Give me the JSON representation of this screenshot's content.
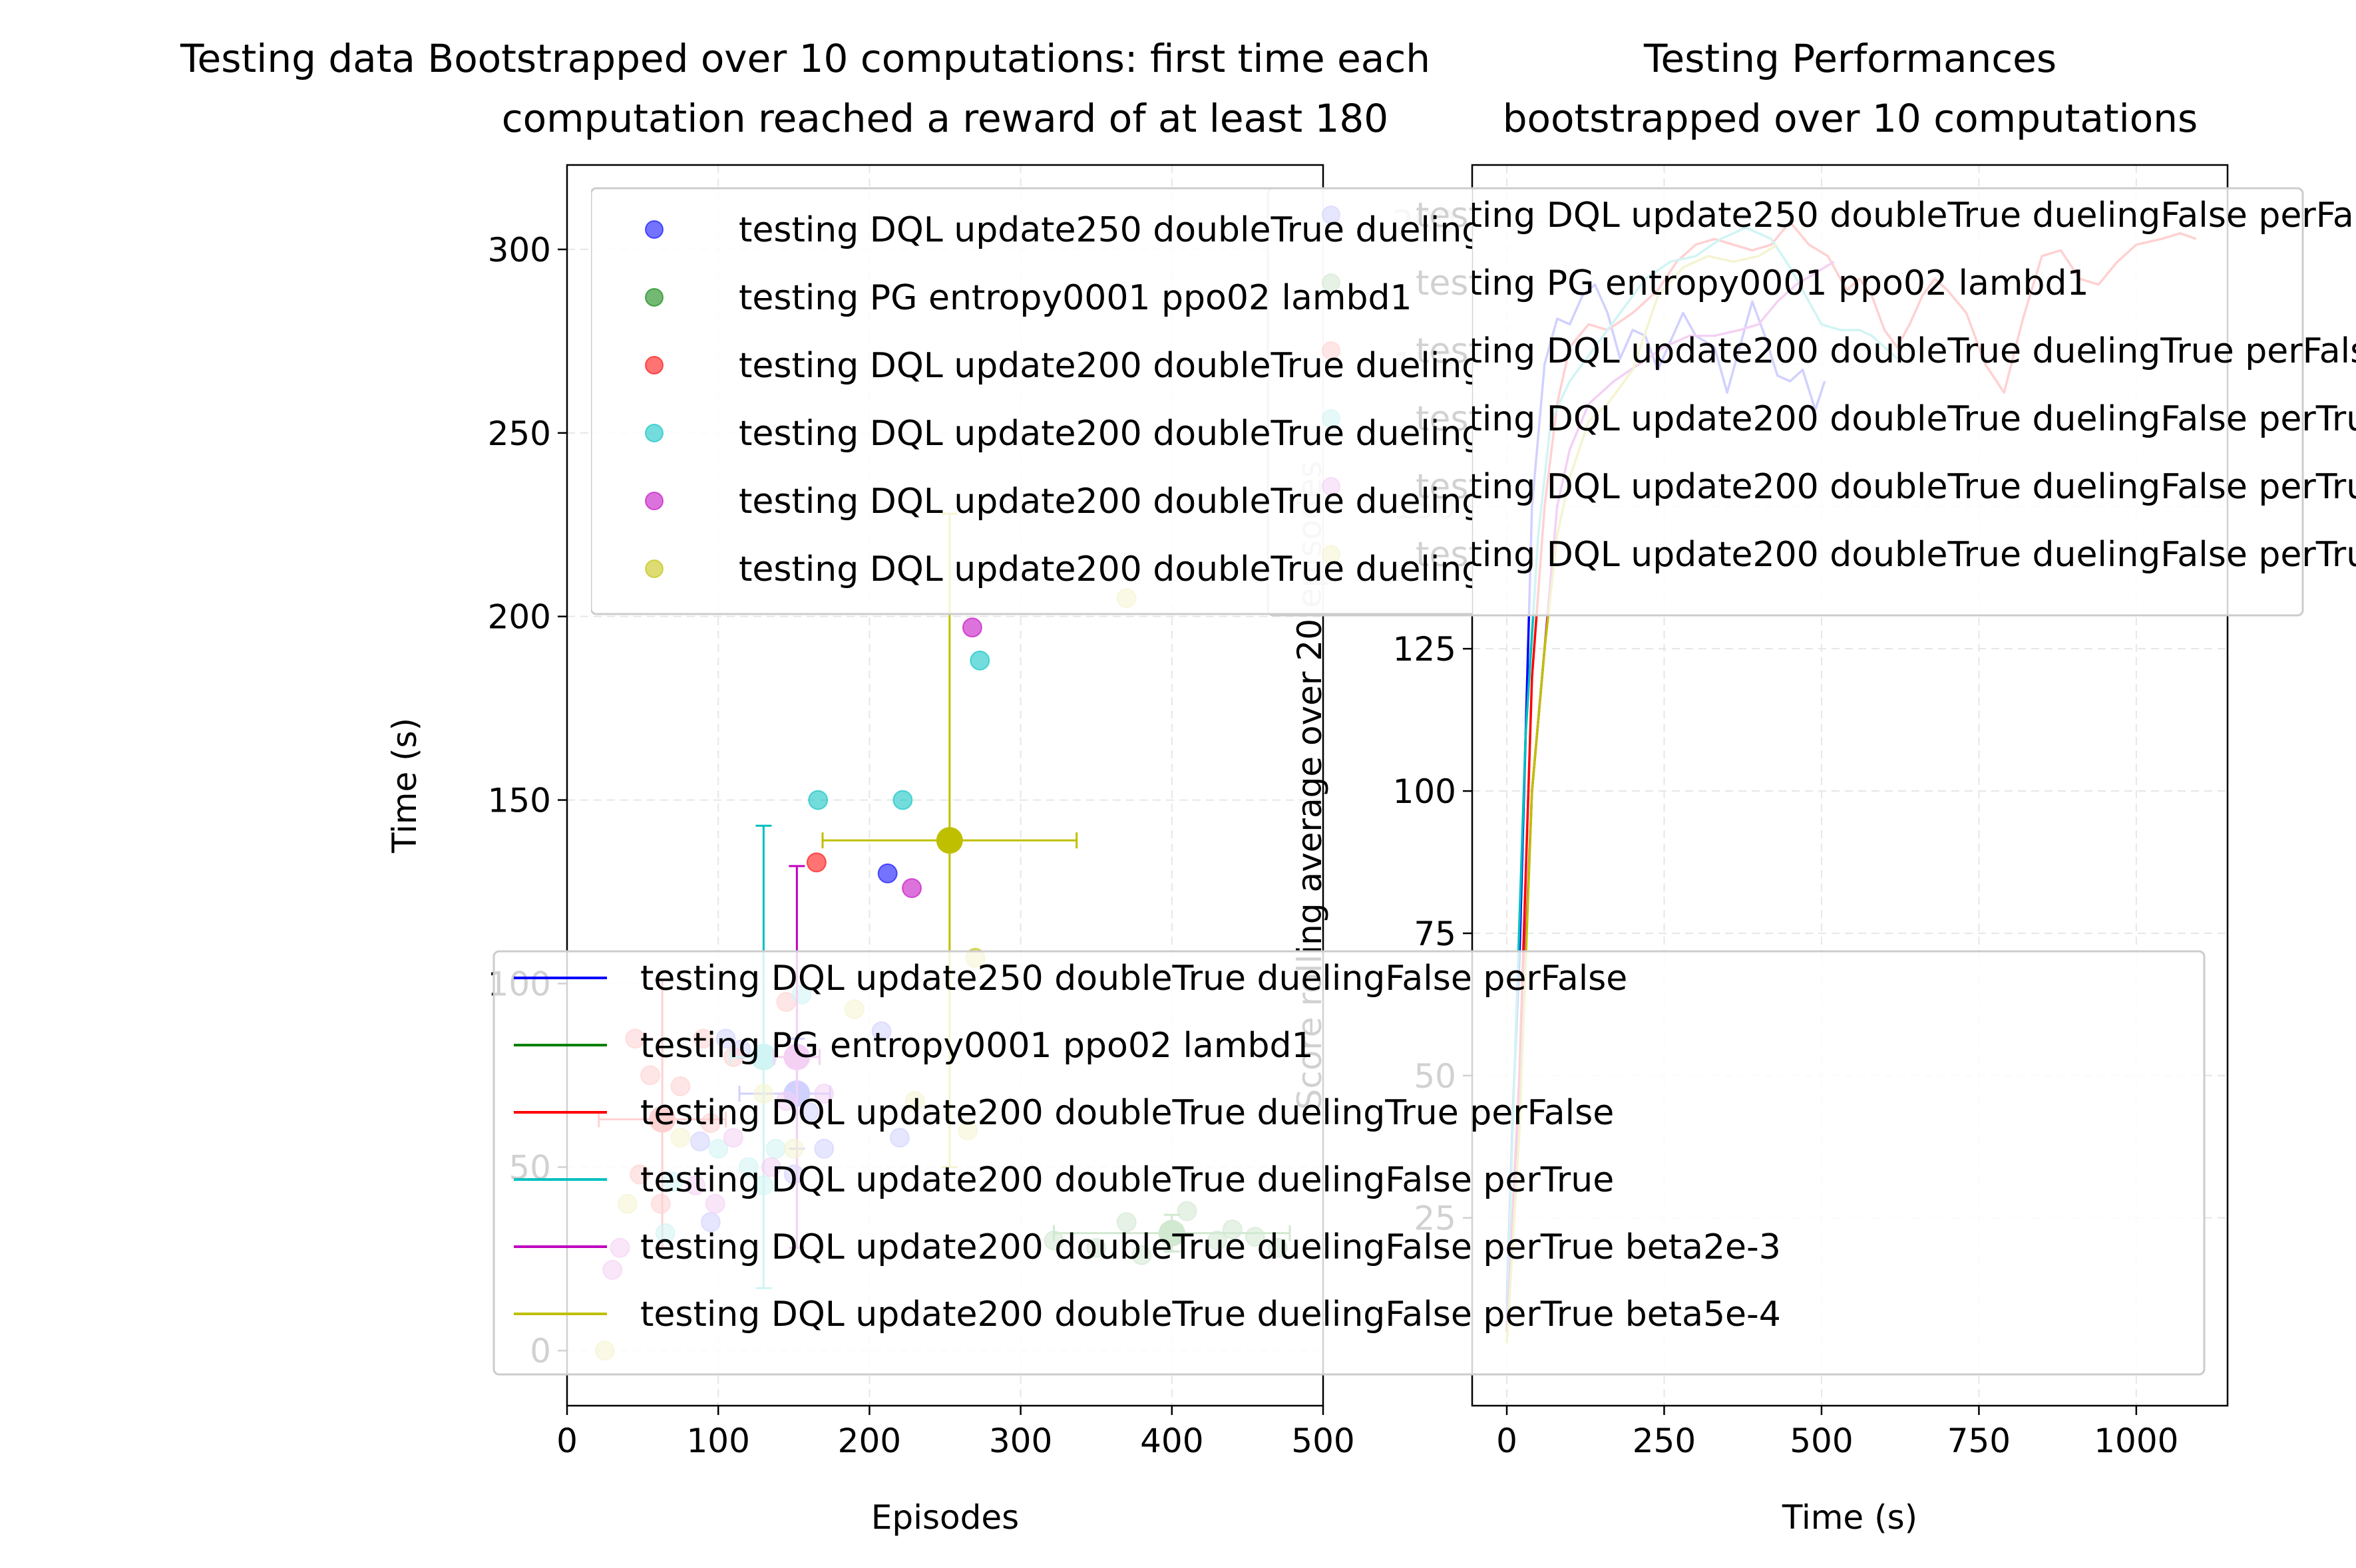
{
  "chart_data": [
    {
      "type": "scatter",
      "title_line1": "Testing data Bootstrapped over 10 computations: first time each",
      "title_line2": "computation reached a reward of at least 180",
      "xlabel": "Episodes",
      "ylabel": "Time (s)",
      "xlim": [
        0,
        500
      ],
      "ylim": [
        -15,
        323
      ],
      "xticks": [
        0,
        100,
        200,
        300,
        400,
        500
      ],
      "yticks": [
        0,
        50,
        100,
        150,
        200,
        250,
        300
      ],
      "grid": true,
      "legend_position": "upper-left",
      "series": [
        {
          "name": "testing DQL update250 doubleTrue duelingFalse perFalse",
          "color": "#0000ff",
          "points": [
            [
              88,
              57
            ],
            [
              105,
              85
            ],
            [
              115,
              82
            ],
            [
              150,
              48
            ],
            [
              160,
              65
            ],
            [
              170,
              55
            ],
            [
              208,
              87
            ],
            [
              212,
              130
            ],
            [
              220,
              58
            ],
            [
              95,
              35
            ]
          ],
          "mean": [
            152,
            70
          ],
          "xerr": [
            38,
            22
          ],
          "yerr": [
            15,
            15
          ]
        },
        {
          "name": "testing PG entropy0001 ppo02 lambd1",
          "color": "#008000",
          "points": [
            [
              322,
              30
            ],
            [
              350,
              28
            ],
            [
              370,
              35
            ],
            [
              400,
              32
            ],
            [
              430,
              30
            ],
            [
              470,
              28
            ],
            [
              380,
              26
            ],
            [
              410,
              38
            ],
            [
              440,
              33
            ],
            [
              455,
              31
            ]
          ],
          "mean": [
            400,
            32
          ],
          "xerr": [
            78,
            78
          ],
          "yerr": [
            5,
            5
          ]
        },
        {
          "name": "testing DQL update200 doubleTrue duelingTrue perFalse",
          "color": "#ff0000",
          "points": [
            [
              45,
              85
            ],
            [
              48,
              48
            ],
            [
              55,
              75
            ],
            [
              62,
              40
            ],
            [
              75,
              72
            ],
            [
              90,
              85
            ],
            [
              95,
              62
            ],
            [
              110,
              80
            ],
            [
              145,
              95
            ],
            [
              165,
              133
            ]
          ],
          "mean": [
            63,
            63
          ],
          "xerr": [
            42,
            42
          ],
          "yerr": [
            35,
            38
          ]
        },
        {
          "name": "testing DQL update200 doubleTrue duelingFalse perTrue",
          "color": "#00bfbf",
          "points": [
            [
              65,
              32
            ],
            [
              100,
              55
            ],
            [
              120,
              50
            ],
            [
              130,
              45
            ],
            [
              138,
              55
            ],
            [
              155,
              97
            ],
            [
              166,
              150
            ],
            [
              222,
              150
            ],
            [
              273,
              188
            ],
            [
              70,
              46
            ]
          ],
          "mean": [
            130,
            80
          ],
          "xerr": [
            22,
            22
          ],
          "yerr": [
            63,
            63
          ]
        },
        {
          "name": "testing DQL update200 doubleTrue duelingFalse perTrue  beta2e-3",
          "color": "#bf00bf",
          "points": [
            [
              30,
              22
            ],
            [
              35,
              28
            ],
            [
              85,
              45
            ],
            [
              110,
              58
            ],
            [
              135,
              50
            ],
            [
              145,
              68
            ],
            [
              170,
              70
            ],
            [
              228,
              126
            ],
            [
              268,
              197
            ],
            [
              98,
              40
            ]
          ],
          "mean": [
            152,
            80
          ],
          "xerr": [
            15,
            15
          ],
          "yerr": [
            52,
            52
          ]
        },
        {
          "name": "testing DQL update200 doubleTrue duelingFalse perTrue  beta5e-4",
          "color": "#bfbf00",
          "points": [
            [
              25,
              0
            ],
            [
              40,
              40
            ],
            [
              75,
              58
            ],
            [
              130,
              70
            ],
            [
              190,
              93
            ],
            [
              230,
              68
            ],
            [
              265,
              60
            ],
            [
              270,
              107
            ],
            [
              370,
              205
            ],
            [
              150,
              55
            ]
          ],
          "mean": [
            253,
            139
          ],
          "xerr": [
            84,
            84
          ],
          "yerr": [
            89,
            89
          ]
        }
      ]
    },
    {
      "type": "line",
      "title_line1": "Testing Performances",
      "title_line2": "bootstrapped over 10 computations",
      "xlabel": "Time (s)",
      "ylabel": "Score rolling average over 20 episodes",
      "xlim": [
        -55,
        1145
      ],
      "ylim": [
        -8,
        210
      ],
      "xticks": [
        0,
        250,
        500,
        750,
        1000
      ],
      "yticks": [
        25,
        50,
        75,
        100,
        125,
        150,
        175,
        200
      ],
      "grid": true,
      "legend_position": "upper-right",
      "series": [
        {
          "name": "testing DQL update250 doubleTrue duelingFalse perFalse",
          "color": "#0000ff",
          "points": [
            [
              0,
              10
            ],
            [
              10,
              45
            ],
            [
              20,
              70
            ],
            [
              30,
              110
            ],
            [
              40,
              150
            ],
            [
              60,
              175
            ],
            [
              80,
              183
            ],
            [
              100,
              182
            ],
            [
              120,
              187
            ],
            [
              140,
              189
            ],
            [
              160,
              184
            ],
            [
              180,
              176
            ],
            [
              200,
              181
            ],
            [
              220,
              180
            ],
            [
              240,
              174
            ],
            [
              260,
              179
            ],
            [
              280,
              184
            ],
            [
              300,
              180
            ],
            [
              330,
              178
            ],
            [
              350,
              170
            ],
            [
              370,
              178
            ],
            [
              390,
              186
            ],
            [
              410,
              180
            ],
            [
              430,
              173
            ],
            [
              450,
              172
            ],
            [
              470,
              174
            ],
            [
              490,
              167
            ],
            [
              505,
              172
            ]
          ]
        },
        {
          "name": "testing PG entropy0001 ppo02 lambd1",
          "color": "#008000",
          "points": []
        },
        {
          "name": "testing DQL update200 doubleTrue duelingTrue perFalse",
          "color": "#ff0000",
          "points": [
            [
              0,
              5
            ],
            [
              20,
              50
            ],
            [
              40,
              120
            ],
            [
              60,
              150
            ],
            [
              80,
              168
            ],
            [
              100,
              178
            ],
            [
              130,
              182
            ],
            [
              160,
              181
            ],
            [
              200,
              184
            ],
            [
              240,
              188
            ],
            [
              270,
              193
            ],
            [
              300,
              196
            ],
            [
              330,
              197
            ],
            [
              360,
              196
            ],
            [
              390,
              195
            ],
            [
              420,
              196
            ],
            [
              450,
              200
            ],
            [
              480,
              196
            ],
            [
              510,
              194
            ],
            [
              540,
              188
            ],
            [
              560,
              190
            ],
            [
              580,
              187
            ],
            [
              600,
              181
            ],
            [
              620,
              178
            ],
            [
              640,
              182
            ],
            [
              660,
              187
            ],
            [
              680,
              190
            ],
            [
              700,
              188
            ],
            [
              730,
              184
            ],
            [
              760,
              175
            ],
            [
              790,
              170
            ],
            [
              820,
              183
            ],
            [
              850,
              194
            ],
            [
              880,
              195
            ],
            [
              910,
              190
            ],
            [
              940,
              189
            ],
            [
              970,
              193
            ],
            [
              1000,
              196
            ],
            [
              1040,
              197
            ],
            [
              1070,
              198
            ],
            [
              1095,
              197
            ]
          ]
        },
        {
          "name": "testing DQL update200 doubleTrue duelingFalse perTrue",
          "color": "#00bfbf",
          "points": [
            [
              0,
              8
            ],
            [
              15,
              60
            ],
            [
              30,
              110
            ],
            [
              50,
              145
            ],
            [
              70,
              165
            ],
            [
              100,
              172
            ],
            [
              140,
              178
            ],
            [
              180,
              184
            ],
            [
              220,
              190
            ],
            [
              260,
              193
            ],
            [
              300,
              194
            ],
            [
              340,
              197
            ],
            [
              380,
              199
            ],
            [
              420,
              197
            ],
            [
              450,
              192
            ],
            [
              480,
              186
            ],
            [
              500,
              182
            ],
            [
              530,
              181
            ],
            [
              560,
              181
            ],
            [
              580,
              180
            ],
            [
              600,
              178
            ],
            [
              620,
              176
            ]
          ]
        },
        {
          "name": "testing DQL update200 doubleTrue duelingFalse perTrue  beta2e-3",
          "color": "#bf00bf",
          "points": [
            [
              0,
              6
            ],
            [
              20,
              45
            ],
            [
              40,
              100
            ],
            [
              60,
              125
            ],
            [
              80,
              150
            ],
            [
              100,
              160
            ],
            [
              130,
              168
            ],
            [
              170,
              172
            ],
            [
              210,
              175
            ],
            [
              250,
              178
            ],
            [
              290,
              180
            ],
            [
              330,
              180
            ],
            [
              370,
              181
            ],
            [
              400,
              182
            ],
            [
              430,
              186
            ],
            [
              460,
              189
            ],
            [
              490,
              191
            ],
            [
              520,
              193
            ]
          ]
        },
        {
          "name": "testing DQL update200 doubleTrue duelingFalse perTrue  beta5e-4",
          "color": "#bfbf00",
          "points": [
            [
              0,
              3
            ],
            [
              20,
              40
            ],
            [
              40,
              100
            ],
            [
              60,
              125
            ],
            [
              80,
              145
            ],
            [
              100,
              155
            ],
            [
              130,
              165
            ],
            [
              160,
              168
            ],
            [
              200,
              174
            ],
            [
              240,
              187
            ],
            [
              280,
              192
            ],
            [
              320,
              194
            ],
            [
              360,
              193
            ],
            [
              400,
              194
            ],
            [
              430,
              196
            ]
          ]
        }
      ]
    }
  ]
}
